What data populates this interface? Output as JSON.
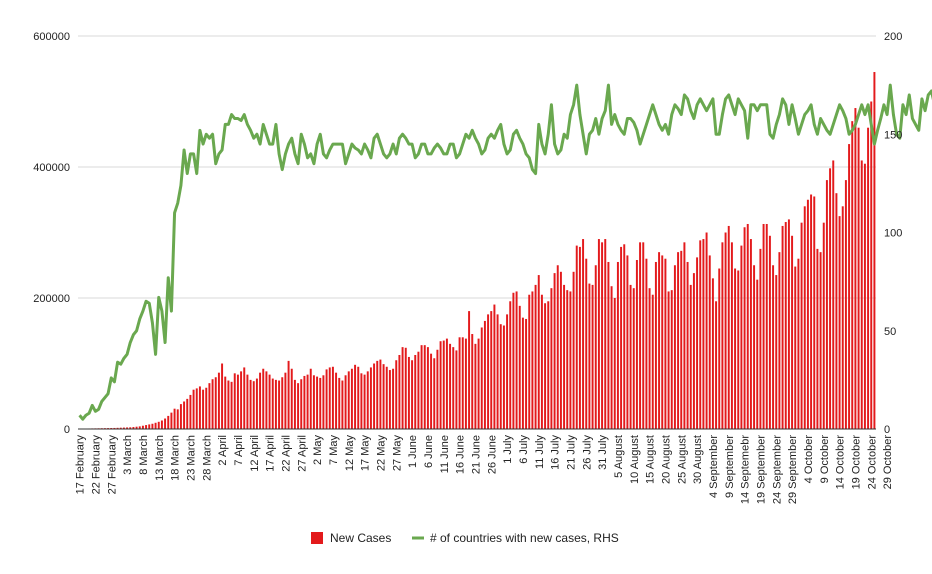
{
  "chart_data": {
    "type": "bar",
    "title": "",
    "xlabel": "",
    "ylabel_left": "",
    "ylabel_right": "",
    "x_start": "2020-02-17",
    "x_end": "2020-10-29",
    "x_tick_labels": [
      "17 February",
      "22 February",
      "27 February",
      "3 March",
      "8 March",
      "13 March",
      "18 March",
      "23 March",
      "28 March",
      "2 April",
      "7 April",
      "12 April",
      "17 April",
      "22 April",
      "27 April",
      "2 May",
      "7 May",
      "12 May",
      "17 May",
      "22 May",
      "27 May",
      "1 June",
      "6 June",
      "11 June",
      "16 June",
      "21 June",
      "26 June",
      "1 July",
      "6 July",
      "11 July",
      "16 July",
      "21 July",
      "26 July",
      "31 July",
      "5 August",
      "10 August",
      "15 August",
      "20 August",
      "25 August",
      "30 August",
      "4 September",
      "9 September",
      "14 Septemebr",
      "19 September",
      "24 September",
      "29 September",
      "4 October",
      "9 October",
      "14 October",
      "19 October",
      "24 October",
      "29 October"
    ],
    "y_left": {
      "min": 0,
      "max": 600000,
      "ticks": [
        0,
        200000,
        400000,
        600000
      ],
      "tick_labels": [
        "0",
        "200000",
        "400000",
        "600000"
      ]
    },
    "y_right": {
      "min": 0,
      "max": 200,
      "ticks": [
        0,
        50,
        100,
        150,
        200
      ],
      "tick_labels": [
        "0",
        "50",
        "100",
        "150",
        "200"
      ]
    },
    "legend_position": "bottom",
    "legend": [
      {
        "label": "New Cases",
        "kind": "bar",
        "color": "#e31a1c"
      },
      {
        "label": "# of countries with new cases, RHS",
        "kind": "line",
        "color": "#6aa84f"
      }
    ],
    "gridlines": true,
    "series": [
      {
        "name": "New Cases",
        "type": "bar",
        "axis": "left",
        "color": "#e31a1c",
        "values": [
          500,
          600,
          700,
          800,
          900,
          1000,
          1100,
          1200,
          1300,
          1400,
          1500,
          1600,
          1800,
          2000,
          2200,
          2400,
          2600,
          3000,
          3500,
          4000,
          5000,
          6000,
          7000,
          8000,
          9500,
          11000,
          13000,
          16000,
          20000,
          25000,
          31000,
          30000,
          38000,
          42000,
          46000,
          52000,
          60000,
          62000,
          65000,
          60000,
          63000,
          70000,
          76000,
          79000,
          86000,
          100000,
          80000,
          74000,
          72000,
          85000,
          83000,
          88000,
          94000,
          83000,
          75000,
          73000,
          77000,
          86000,
          92000,
          88000,
          83000,
          77000,
          75000,
          74000,
          79000,
          86000,
          104000,
          92000,
          75000,
          70000,
          76000,
          81000,
          83000,
          92000,
          82000,
          80000,
          78000,
          82000,
          91000,
          94000,
          95000,
          86000,
          78000,
          74000,
          82000,
          88000,
          92000,
          98000,
          95000,
          85000,
          83000,
          88000,
          94000,
          100000,
          104000,
          106000,
          99000,
          95000,
          90000,
          92000,
          105000,
          113000,
          125000,
          124000,
          110000,
          105000,
          113000,
          118000,
          128000,
          128000,
          125000,
          115000,
          108000,
          121000,
          134000,
          135000,
          138000,
          130000,
          125000,
          120000,
          140000,
          140000,
          138000,
          180000,
          145000,
          130000,
          138000,
          155000,
          165000,
          175000,
          180000,
          190000,
          175000,
          160000,
          158000,
          175000,
          195000,
          208000,
          210000,
          188000,
          170000,
          168000,
          205000,
          210000,
          220000,
          235000,
          205000,
          192000,
          195000,
          215000,
          238000,
          250000,
          240000,
          220000,
          212000,
          210000,
          240000,
          280000,
          278000,
          290000,
          260000,
          222000,
          220000,
          250000,
          290000,
          285000,
          290000,
          255000,
          218000,
          200000,
          255000,
          278000,
          282000,
          265000,
          220000,
          215000,
          258000,
          285000,
          285000,
          260000,
          215000,
          205000,
          255000,
          270000,
          265000,
          260000,
          210000,
          212000,
          250000,
          270000,
          272000,
          285000,
          255000,
          220000,
          238000,
          262000,
          288000,
          290000,
          300000,
          265000,
          230000,
          195000,
          245000,
          285000,
          300000,
          310000,
          285000,
          245000,
          242000,
          280000,
          308000,
          313000,
          290000,
          250000,
          228000,
          275000,
          313000,
          313000,
          295000,
          250000,
          235000,
          270000,
          310000,
          316000,
          320000,
          295000,
          248000,
          260000,
          315000,
          340000,
          350000,
          358000,
          355000,
          275000,
          270000,
          315000,
          380000,
          398000,
          410000,
          360000,
          325000,
          340000,
          380000,
          435000,
          470000,
          490000,
          460000,
          410000,
          405000,
          460000,
          500000,
          545000
        ]
      },
      {
        "name": "# of countries with new cases, RHS",
        "type": "line",
        "axis": "right",
        "color": "#6aa84f",
        "values": [
          7,
          5,
          7,
          8,
          12,
          9,
          10,
          14,
          16,
          18,
          26,
          24,
          34,
          33,
          36,
          38,
          44,
          48,
          50,
          56,
          60,
          65,
          64,
          54,
          38,
          67,
          60,
          44,
          77,
          60,
          110,
          115,
          124,
          142,
          130,
          140,
          140,
          130,
          152,
          145,
          150,
          148,
          150,
          135,
          140,
          142,
          155,
          155,
          160,
          158,
          158,
          157,
          160,
          155,
          152,
          148,
          150,
          145,
          155,
          150,
          145,
          145,
          155,
          140,
          132,
          140,
          145,
          148,
          140,
          135,
          150,
          145,
          138,
          140,
          135,
          145,
          150,
          140,
          138,
          142,
          145,
          145,
          145,
          145,
          135,
          140,
          145,
          143,
          142,
          140,
          145,
          142,
          138,
          148,
          150,
          145,
          140,
          138,
          140,
          145,
          140,
          148,
          150,
          148,
          145,
          145,
          138,
          140,
          145,
          145,
          140,
          140,
          143,
          145,
          143,
          140,
          140,
          145,
          145,
          138,
          140,
          145,
          150,
          148,
          152,
          148,
          145,
          140,
          142,
          148,
          150,
          148,
          152,
          155,
          145,
          140,
          142,
          150,
          152,
          148,
          145,
          140,
          138,
          132,
          130,
          155,
          145,
          140,
          150,
          165,
          145,
          140,
          142,
          150,
          148,
          160,
          165,
          175,
          160,
          150,
          140,
          150,
          152,
          158,
          150,
          158,
          162,
          175,
          155,
          160,
          155,
          152,
          150,
          158,
          158,
          156,
          152,
          145,
          150,
          155,
          160,
          165,
          160,
          155,
          152,
          155,
          150,
          160,
          165,
          163,
          160,
          170,
          168,
          162,
          158,
          165,
          168,
          165,
          162,
          165,
          168,
          150,
          150,
          160,
          168,
          170,
          165,
          160,
          168,
          165,
          162,
          148,
          165,
          165,
          162,
          165,
          165,
          165,
          150,
          148,
          155,
          160,
          168,
          165,
          155,
          165,
          158,
          150,
          155,
          160,
          162,
          165,
          155,
          150,
          158,
          155,
          152,
          150,
          155,
          160,
          165,
          162,
          158,
          150,
          152,
          155,
          160,
          165,
          160,
          165,
          155,
          145,
          152,
          158,
          165,
          160,
          175,
          160,
          150,
          148,
          165,
          160,
          170,
          158,
          155,
          152,
          168,
          162,
          170,
          172,
          165,
          140,
          175,
          165,
          160
        ]
      }
    ]
  }
}
